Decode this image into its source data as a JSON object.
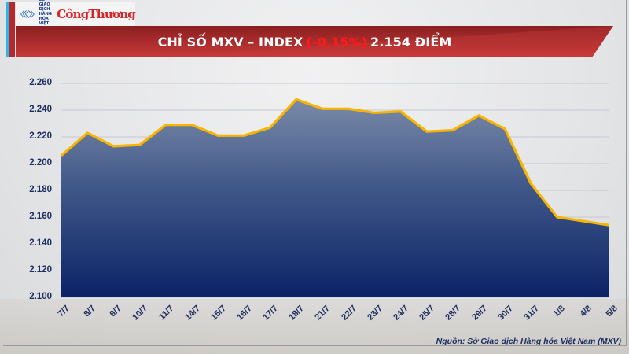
{
  "header": {
    "logo_text": [
      "SỞ GIAO DỊCH",
      "HÀNG HÓA",
      "VIỆT NAM"
    ],
    "brand": "CôngThương",
    "title_prefix": "CHỈ SỐ MXV – INDEX",
    "title_change": "(-0,15%)",
    "title_suffix": "2.154 ĐIỂM"
  },
  "colors": {
    "banner_red": "#b52a2b",
    "line": "#f7b500",
    "area_top": "#7586a6",
    "area_bottom": "#0b2366",
    "change_red": "#ff1a1a",
    "axis_text": "#1c2c5e"
  },
  "footer": {
    "source": "Nguồn: Sở Giao dịch Hàng hóa Việt Nam (MXV)"
  },
  "chart_data": {
    "type": "area",
    "title": "CHỈ SỐ MXV – INDEX (-0,15%) 2.154 ĐIỂM",
    "xlabel": "",
    "ylabel": "",
    "categories": [
      "7/7",
      "8/7",
      "9/7",
      "10/7",
      "11/7",
      "14/7",
      "15/7",
      "16/7",
      "17/7",
      "18/7",
      "21/7",
      "22/7",
      "23/7",
      "24/7",
      "25/7",
      "28/7",
      "29/7",
      "30/7",
      "31/7",
      "1/8",
      "4/8",
      "5/8"
    ],
    "values": [
      2206,
      2223,
      2213,
      2214,
      2229,
      2229,
      2221,
      2221,
      2227,
      2248,
      2241,
      2241,
      2238,
      2239,
      2224,
      2225,
      2236,
      2226,
      2185,
      2160,
      2157,
      2154
    ],
    "y_tick_labels": [
      "2.100",
      "2.120",
      "2.140",
      "2.160",
      "2.180",
      "2.200",
      "2.220",
      "2.240",
      "2.260"
    ],
    "y_ticks": [
      2100,
      2120,
      2140,
      2160,
      2180,
      2200,
      2220,
      2240,
      2260
    ],
    "ylim": [
      2100,
      2260
    ],
    "grid": true,
    "legend": null
  }
}
